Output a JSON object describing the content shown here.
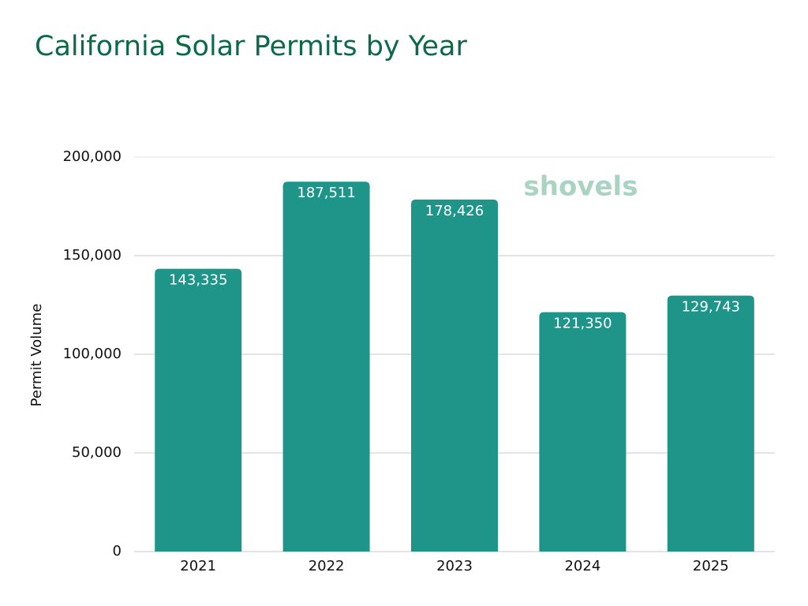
{
  "chart_data": {
    "type": "bar",
    "title": "California Solar Permits by Year",
    "y_label": "Permit Volume",
    "watermark": "shovels",
    "categories": [
      "2021",
      "2022",
      "2023",
      "2024",
      "2025"
    ],
    "values": [
      143335,
      187511,
      178426,
      121350,
      129743
    ],
    "value_labels": [
      "143,335",
      "187,511",
      "178,426",
      "121,350",
      "129,743"
    ],
    "color": "#1f958a",
    "ylim": [
      0,
      200000
    ],
    "yticks": [
      0,
      {
        "value": 50000,
        "label": "50,000"
      },
      {
        "value": 100000,
        "label": "100,000"
      },
      {
        "value": 150000,
        "label": "150,000"
      },
      {
        "value": 200000,
        "label": "200,000"
      }
    ],
    "grid": true
  }
}
